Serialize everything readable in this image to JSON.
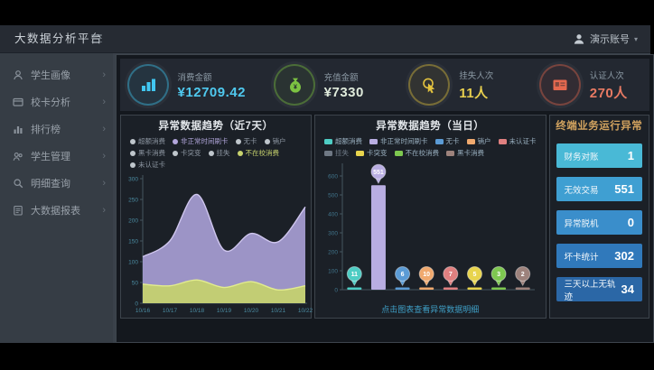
{
  "app": {
    "title": "大数据分析平台",
    "user_label": "演示账号",
    "user_caret": "▾"
  },
  "sidebar": {
    "items": [
      {
        "label": "学生画像",
        "icon": "student-icon"
      },
      {
        "label": "校卡分析",
        "icon": "card-icon"
      },
      {
        "label": "排行榜",
        "icon": "rank-icon"
      },
      {
        "label": "学生管理",
        "icon": "manage-icon"
      },
      {
        "label": "明细查询",
        "icon": "query-icon"
      },
      {
        "label": "大数据报表",
        "icon": "report-icon"
      }
    ]
  },
  "kpis": [
    {
      "label": "消费金额",
      "value": "¥12709.42",
      "color": "#41c7f2",
      "value_color": "#4fc9ef",
      "icon": "bar-chart-icon"
    },
    {
      "label": "充值金额",
      "value": "¥7330",
      "color": "#7cc242",
      "value_color": "#dfeadb",
      "icon": "money-bag-icon"
    },
    {
      "label": "挂失人次",
      "value": "11人",
      "color": "#e3c23e",
      "value_color": "#e8cf4e",
      "icon": "click-icon"
    },
    {
      "label": "认证人次",
      "value": "270人",
      "color": "#e4684f",
      "value_color": "#e87a63",
      "icon": "id-card-icon"
    }
  ],
  "chart_data": [
    {
      "type": "area",
      "title": "异常数据趋势（近7天）",
      "categories": [
        "10/16",
        "10/17",
        "10/18",
        "10/19",
        "10/20",
        "10/21",
        "10/22"
      ],
      "series": [
        {
          "name": "非正常时间刷卡",
          "color": "#cfc6ee",
          "fill": "#a79ed4",
          "values": [
            112,
            150,
            262,
            128,
            168,
            148,
            232
          ]
        },
        {
          "name": "不在校消费",
          "color": "#e2ec8e",
          "fill": "#c6d16c",
          "values": [
            46,
            42,
            56,
            38,
            52,
            32,
            42
          ]
        }
      ],
      "ylim": [
        0,
        300
      ],
      "yticks": [
        0,
        50,
        100,
        150,
        200,
        250,
        300
      ],
      "grid": false,
      "legend_position": "top",
      "legend_rows": [
        [
          {
            "label": "超额消费",
            "dot": "#bfc6cc"
          },
          {
            "label": "非正常时间刷卡",
            "dot": "#b3a6dc",
            "text": "#b0a5da"
          },
          {
            "label": "无卡",
            "dot": "#bfc6cc"
          },
          {
            "label": "销户",
            "dot": "#bfc6cc"
          }
        ],
        [
          {
            "label": "黑卡消费",
            "dot": "#bfc6cc"
          },
          {
            "label": "卡突变",
            "dot": "#bfc6cc"
          },
          {
            "label": "挂失",
            "dot": "#bfc6cc"
          },
          {
            "label": "不在校消费",
            "dot": "#c8d36e",
            "text": "#c8d36e"
          }
        ],
        [
          {
            "label": "未认证卡",
            "dot": "#bfc6cc"
          }
        ]
      ]
    },
    {
      "type": "bar",
      "title": "异常数据趋势（当日）",
      "categories": [
        "超额消费",
        "非正常时间刷卡",
        "无卡",
        "销户",
        "未认证卡",
        "卡突变",
        "不在校消费",
        "黑卡消费"
      ],
      "values": [
        11,
        551,
        6,
        10,
        7,
        5,
        3,
        2
      ],
      "colors": [
        "#4ecdc4",
        "#b9aee2",
        "#5b9bd5",
        "#f0a96e",
        "#e08080",
        "#e8d44d",
        "#7ec850",
        "#9d827c"
      ],
      "ylim": [
        0,
        600
      ],
      "yticks": [
        0,
        100,
        200,
        300,
        400,
        500,
        600
      ],
      "grid": false,
      "legend_position": "top",
      "legend_rows": [
        [
          {
            "label": "超额消费",
            "sq": "#4ecdc4"
          },
          {
            "label": "非正常时间刷卡",
            "sq": "#b9aee2"
          },
          {
            "label": "无卡",
            "sq": "#5b9bd5"
          },
          {
            "label": "销户",
            "sq": "#f0a96e"
          },
          {
            "label": "未认证卡",
            "sq": "#e08080"
          }
        ],
        [
          {
            "label": "挂失",
            "sq": "#6f7884",
            "text": "#707b88"
          },
          {
            "label": "卡突变",
            "sq": "#e8d44d"
          },
          {
            "label": "不在校消费",
            "sq": "#7ec850"
          },
          {
            "label": "黑卡消费",
            "sq": "#9d827c"
          }
        ]
      ],
      "footer_link": "点击图表查看异常数据明细"
    }
  ],
  "right_panel": {
    "title": "终端业务运行异常",
    "rows": [
      {
        "label": "财务对账",
        "value": "1",
        "color": "#49b9d6"
      },
      {
        "label": "无效交易",
        "value": "551",
        "color": "#3f9fd2"
      },
      {
        "label": "异常脱机",
        "value": "0",
        "color": "#3a8ecb"
      },
      {
        "label": "坏卡统计",
        "value": "302",
        "color": "#3079bb"
      },
      {
        "label": "三天以上无轨迹",
        "value": "34",
        "color": "#2b67a6"
      }
    ]
  }
}
